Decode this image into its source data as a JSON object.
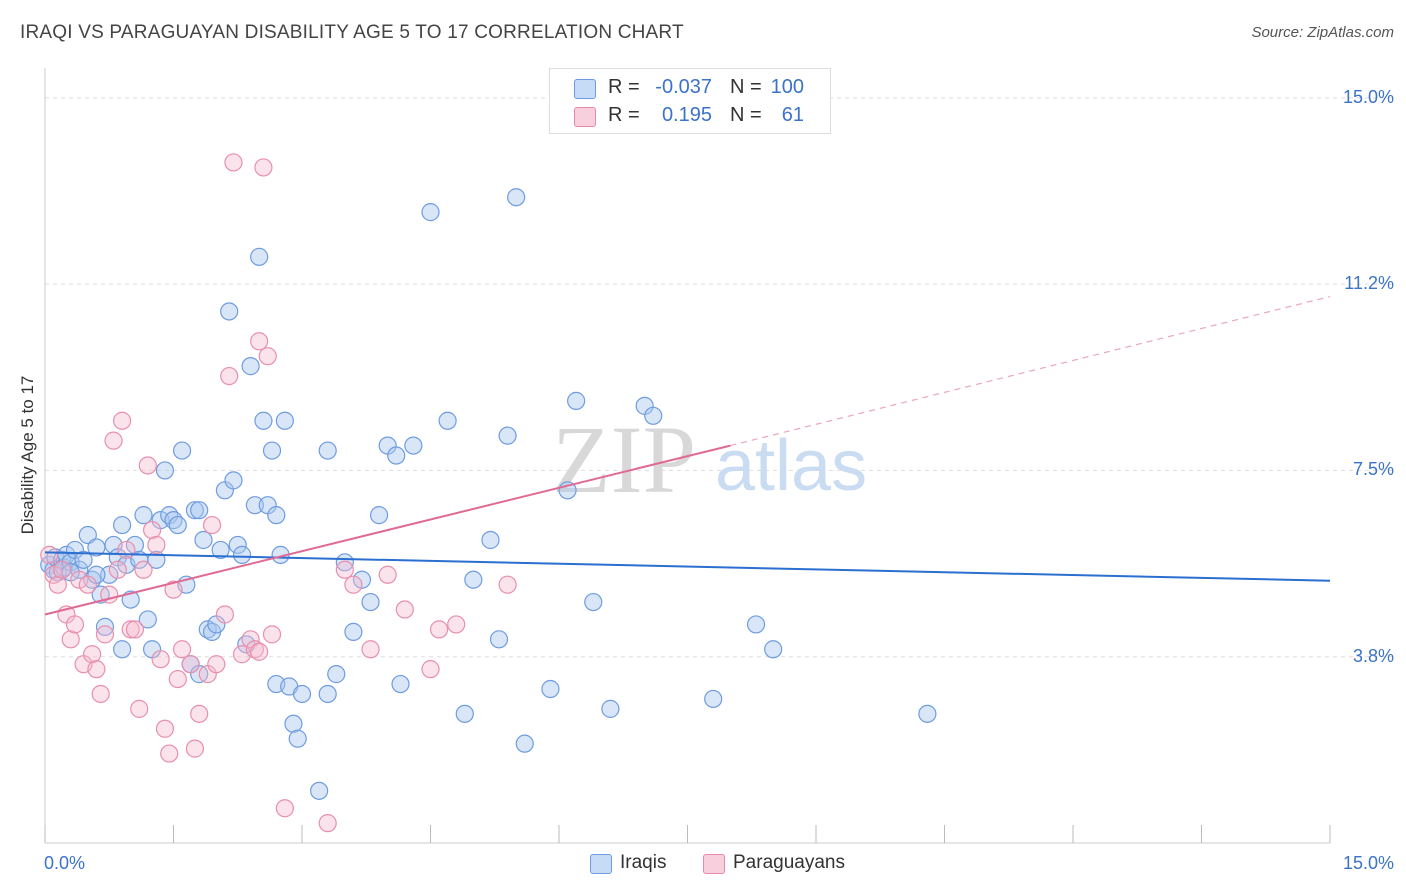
{
  "title": "IRAQI VS PARAGUAYAN DISABILITY AGE 5 TO 17 CORRELATION CHART",
  "source": "Source: ZipAtlas.com",
  "watermark": {
    "zip": "ZIP",
    "atlas": "atlas"
  },
  "legend": {
    "r_label": "R =",
    "n_label": "N =",
    "rows": [
      {
        "r": "-0.037",
        "n": "100",
        "color": "#a9c8f0"
      },
      {
        "r": "0.195",
        "n": "61",
        "color": "#f5b8cc"
      }
    ]
  },
  "colors": {
    "iraqis": "#5b8fd6",
    "paraguayans": "#e8799f",
    "iraqis_line": "#2b6fd0",
    "paraguayans_line": "#e06a94",
    "axis_text": "#3b73c9"
  },
  "chart_data": {
    "type": "scatter",
    "xlabel": "",
    "ylabel": "Disability Age 5 to 17",
    "x_tick_labels": [
      "0.0%",
      "15.0%"
    ],
    "y_tick_labels": [
      "15.0%",
      "11.2%",
      "7.5%",
      "3.8%"
    ],
    "y_ticks": [
      15.0,
      11.25,
      7.5,
      3.75
    ],
    "xlim": [
      0,
      15
    ],
    "ylim": [
      0,
      15.4
    ],
    "grid": true,
    "series": [
      {
        "name": "Iraqis",
        "color": "#5b8fd6",
        "trend": {
          "x": [
            0,
            15
          ],
          "y": [
            5.85,
            5.28
          ]
        },
        "points": [
          [
            0.05,
            5.6
          ],
          [
            0.1,
            5.5
          ],
          [
            0.12,
            5.75
          ],
          [
            0.15,
            5.45
          ],
          [
            0.2,
            5.7
          ],
          [
            0.22,
            5.55
          ],
          [
            0.25,
            5.8
          ],
          [
            0.3,
            5.65
          ],
          [
            0.35,
            5.9
          ],
          [
            0.4,
            5.5
          ],
          [
            0.45,
            5.7
          ],
          [
            0.5,
            6.2
          ],
          [
            0.55,
            5.3
          ],
          [
            0.6,
            5.95
          ],
          [
            0.65,
            5.0
          ],
          [
            0.7,
            4.35
          ],
          [
            0.75,
            5.4
          ],
          [
            0.8,
            6.0
          ],
          [
            0.85,
            5.75
          ],
          [
            0.9,
            6.4
          ],
          [
            0.95,
            5.6
          ],
          [
            1.0,
            4.9
          ],
          [
            1.05,
            6.0
          ],
          [
            1.1,
            5.7
          ],
          [
            1.15,
            6.6
          ],
          [
            1.2,
            4.5
          ],
          [
            1.25,
            3.9
          ],
          [
            1.3,
            5.7
          ],
          [
            1.35,
            6.5
          ],
          [
            1.4,
            7.5
          ],
          [
            1.45,
            6.6
          ],
          [
            1.5,
            6.5
          ],
          [
            1.55,
            6.4
          ],
          [
            1.6,
            7.9
          ],
          [
            1.65,
            5.2
          ],
          [
            1.7,
            3.6
          ],
          [
            1.75,
            6.7
          ],
          [
            1.8,
            6.7
          ],
          [
            1.85,
            6.1
          ],
          [
            1.9,
            4.3
          ],
          [
            1.95,
            4.25
          ],
          [
            2.0,
            4.4
          ],
          [
            2.05,
            5.9
          ],
          [
            2.1,
            7.1
          ],
          [
            2.15,
            10.7
          ],
          [
            2.2,
            7.3
          ],
          [
            2.25,
            6.0
          ],
          [
            2.3,
            5.8
          ],
          [
            2.35,
            4.0
          ],
          [
            2.4,
            9.6
          ],
          [
            2.45,
            6.8
          ],
          [
            2.5,
            11.8
          ],
          [
            2.55,
            8.5
          ],
          [
            2.6,
            6.8
          ],
          [
            2.65,
            7.9
          ],
          [
            2.7,
            3.2
          ],
          [
            2.75,
            5.8
          ],
          [
            2.8,
            8.5
          ],
          [
            2.85,
            3.15
          ],
          [
            2.9,
            2.4
          ],
          [
            2.95,
            2.1
          ],
          [
            3.0,
            3.0
          ],
          [
            3.2,
            1.05
          ],
          [
            3.5,
            5.65
          ],
          [
            3.6,
            4.25
          ],
          [
            3.4,
            3.4
          ],
          [
            3.3,
            3.0
          ],
          [
            3.7,
            5.3
          ],
          [
            3.8,
            4.85
          ],
          [
            3.9,
            6.6
          ],
          [
            4.0,
            8.0
          ],
          [
            4.1,
            7.8
          ],
          [
            4.15,
            3.2
          ],
          [
            4.3,
            8.0
          ],
          [
            4.5,
            12.7
          ],
          [
            4.7,
            8.5
          ],
          [
            4.9,
            2.6
          ],
          [
            5.0,
            5.3
          ],
          [
            5.2,
            6.1
          ],
          [
            5.3,
            4.1
          ],
          [
            5.4,
            8.2
          ],
          [
            5.5,
            13.0
          ],
          [
            5.6,
            2.0
          ],
          [
            5.9,
            3.1
          ],
          [
            6.1,
            7.1
          ],
          [
            6.2,
            8.9
          ],
          [
            6.4,
            4.85
          ],
          [
            6.6,
            2.7
          ],
          [
            7.0,
            8.8
          ],
          [
            7.1,
            8.6
          ],
          [
            7.8,
            2.9
          ],
          [
            8.3,
            4.4
          ],
          [
            8.5,
            3.9
          ],
          [
            10.3,
            2.6
          ],
          [
            0.3,
            5.45
          ],
          [
            0.6,
            5.4
          ],
          [
            1.8,
            3.4
          ],
          [
            2.7,
            6.6
          ],
          [
            3.3,
            7.9
          ],
          [
            0.9,
            3.9
          ]
        ]
      },
      {
        "name": "Paraguayans",
        "color": "#e8799f",
        "trend": {
          "x": [
            0,
            8
          ],
          "y": [
            4.6,
            8.0
          ]
        },
        "trend_dashed": {
          "x": [
            8,
            15
          ],
          "y": [
            8.0,
            11.0
          ]
        },
        "points": [
          [
            0.05,
            5.8
          ],
          [
            0.1,
            5.4
          ],
          [
            0.15,
            5.2
          ],
          [
            0.2,
            5.5
          ],
          [
            0.25,
            4.6
          ],
          [
            0.3,
            4.1
          ],
          [
            0.35,
            4.4
          ],
          [
            0.4,
            5.3
          ],
          [
            0.45,
            3.6
          ],
          [
            0.5,
            5.2
          ],
          [
            0.55,
            3.8
          ],
          [
            0.6,
            3.5
          ],
          [
            0.65,
            3.0
          ],
          [
            0.7,
            4.2
          ],
          [
            0.75,
            5.0
          ],
          [
            0.8,
            8.1
          ],
          [
            0.85,
            5.5
          ],
          [
            0.9,
            8.5
          ],
          [
            0.95,
            5.9
          ],
          [
            1.0,
            4.3
          ],
          [
            1.05,
            4.3
          ],
          [
            1.1,
            2.7
          ],
          [
            1.15,
            5.5
          ],
          [
            1.2,
            7.6
          ],
          [
            1.25,
            6.3
          ],
          [
            1.3,
            6.0
          ],
          [
            1.35,
            3.7
          ],
          [
            1.4,
            2.3
          ],
          [
            1.45,
            1.8
          ],
          [
            1.5,
            5.1
          ],
          [
            1.55,
            3.3
          ],
          [
            1.6,
            3.9
          ],
          [
            1.7,
            3.6
          ],
          [
            1.75,
            1.9
          ],
          [
            1.8,
            2.6
          ],
          [
            1.9,
            3.4
          ],
          [
            1.95,
            6.4
          ],
          [
            2.0,
            3.6
          ],
          [
            2.1,
            4.6
          ],
          [
            2.15,
            9.4
          ],
          [
            2.2,
            13.7
          ],
          [
            2.3,
            3.8
          ],
          [
            2.4,
            4.1
          ],
          [
            2.45,
            3.9
          ],
          [
            2.5,
            10.1
          ],
          [
            2.55,
            13.6
          ],
          [
            2.6,
            9.8
          ],
          [
            2.65,
            4.2
          ],
          [
            2.8,
            0.7
          ],
          [
            2.5,
            3.85
          ],
          [
            3.3,
            0.4
          ],
          [
            3.5,
            5.5
          ],
          [
            3.6,
            5.2
          ],
          [
            3.8,
            3.9
          ],
          [
            4.0,
            5.4
          ],
          [
            4.2,
            4.7
          ],
          [
            4.5,
            3.5
          ],
          [
            4.6,
            4.3
          ],
          [
            4.8,
            4.4
          ],
          [
            5.4,
            5.2
          ],
          [
            6.5,
            14.8
          ]
        ]
      }
    ]
  }
}
